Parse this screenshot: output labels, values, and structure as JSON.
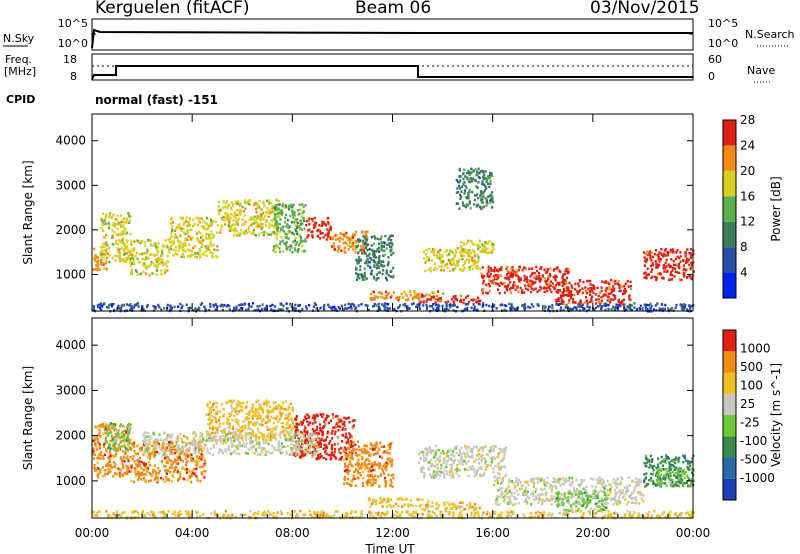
{
  "header": {
    "station": "Kerguelen (fitACF)",
    "beam": "Beam 06",
    "date": "03/Nov/2015"
  },
  "strip": {
    "nsky_label": "N.Sky",
    "nsky_ticks": [
      "10^5",
      "10^0"
    ],
    "nsearch_label": "N.Search",
    "nsearch_ticks": [
      "10^5",
      "10^0"
    ],
    "freq_label": "Freq.",
    "freq_unit": "[MHz]",
    "freq_ticks": [
      "18",
      "8"
    ],
    "nave_label": "Nave",
    "nave_ticks": [
      "60",
      "0"
    ],
    "cpid_label": "CPID",
    "cpid_text": "normal (fast) -151"
  },
  "chart_data": [
    {
      "type": "heatmap",
      "name": "power",
      "ylabel": "Slant Range [km]",
      "xlabel": "",
      "x_ticks": [
        "00:00",
        "04:00",
        "08:00",
        "12:00",
        "16:00",
        "20:00",
        "00:00"
      ],
      "y_ticks": [
        1000,
        2000,
        3000,
        4000
      ],
      "ylim": [
        180,
        4600
      ],
      "xlim_hours": [
        0,
        24
      ],
      "colorbar": {
        "label": "Power [dB]",
        "ticks": [
          "4",
          "8",
          "12",
          "16",
          "20",
          "24",
          "28"
        ],
        "colors": [
          "#0022ee",
          "#2a4fa8",
          "#3a7f5a",
          "#5ab04a",
          "#d8d020",
          "#f08a14",
          "#e02012"
        ]
      },
      "regions": [
        {
          "t0": 0.0,
          "t1": 0.6,
          "r0": 1100,
          "r1": 1600,
          "level": 5
        },
        {
          "t0": 0.3,
          "t1": 1.5,
          "r0": 1300,
          "r1": 2400,
          "level": 4
        },
        {
          "t0": 1.5,
          "t1": 3.0,
          "r0": 1000,
          "r1": 1800,
          "level": 4
        },
        {
          "t0": 3.0,
          "t1": 5.0,
          "r0": 1400,
          "r1": 2300,
          "level": 4
        },
        {
          "t0": 5.0,
          "t1": 7.5,
          "r0": 1900,
          "r1": 2700,
          "level": 4
        },
        {
          "t0": 7.2,
          "t1": 8.5,
          "r0": 1500,
          "r1": 2600,
          "level": 3
        },
        {
          "t0": 8.5,
          "t1": 9.5,
          "r0": 1800,
          "r1": 2300,
          "level": 6
        },
        {
          "t0": 9.5,
          "t1": 11.0,
          "r0": 1500,
          "r1": 2000,
          "level": 5
        },
        {
          "t0": 10.5,
          "t1": 12.0,
          "r0": 900,
          "r1": 1900,
          "level": 2
        },
        {
          "t0": 11.0,
          "t1": 14.0,
          "r0": 450,
          "r1": 650,
          "level": 5
        },
        {
          "t0": 13.0,
          "t1": 15.5,
          "r0": 380,
          "r1": 550,
          "level": 6
        },
        {
          "t0": 13.2,
          "t1": 15.5,
          "r0": 1100,
          "r1": 1600,
          "level": 4
        },
        {
          "t0": 14.5,
          "t1": 16.0,
          "r0": 1500,
          "r1": 1800,
          "level": 4
        },
        {
          "t0": 14.5,
          "t1": 16.0,
          "r0": 2500,
          "r1": 3400,
          "level": 2
        },
        {
          "t0": 15.5,
          "t1": 19.0,
          "r0": 600,
          "r1": 1200,
          "level": 6
        },
        {
          "t0": 18.5,
          "t1": 21.5,
          "r0": 350,
          "r1": 900,
          "level": 6
        },
        {
          "t0": 22.0,
          "t1": 24.0,
          "r0": 900,
          "r1": 1600,
          "level": 6
        },
        {
          "t0": 0.0,
          "t1": 24.0,
          "r0": 200,
          "r1": 380,
          "level": 1
        }
      ]
    },
    {
      "type": "heatmap",
      "name": "velocity",
      "ylabel": "Slant Range [km]",
      "xlabel": "Time UT",
      "x_ticks": [
        "00:00",
        "04:00",
        "08:00",
        "12:00",
        "16:00",
        "20:00",
        "00:00"
      ],
      "y_ticks": [
        1000,
        2000,
        3000,
        4000
      ],
      "ylim": [
        180,
        4600
      ],
      "xlim_hours": [
        0,
        24
      ],
      "colorbar": {
        "label": "Velocity [m s^-1]",
        "ticks": [
          "1000",
          "500",
          "100",
          "25",
          "-25",
          "-100",
          "-500",
          "-1000"
        ],
        "colors": [
          "#1a3fb8",
          "#2a6aa8",
          "#3a8a4a",
          "#6ac83a",
          "#c8c8c0",
          "#f0c020",
          "#f08a14",
          "#e02012"
        ]
      },
      "regions": [
        {
          "t0": 0.0,
          "t1": 1.5,
          "r0": 1100,
          "r1": 2300,
          "level": 6
        },
        {
          "t0": 0.5,
          "t1": 1.5,
          "r0": 1700,
          "r1": 2300,
          "level": 3
        },
        {
          "t0": 1.5,
          "t1": 4.5,
          "r0": 1000,
          "r1": 1900,
          "level": 6
        },
        {
          "t0": 4.5,
          "t1": 8.0,
          "r0": 1900,
          "r1": 2800,
          "level": 5
        },
        {
          "t0": 8.0,
          "t1": 10.5,
          "r0": 1500,
          "r1": 2500,
          "level": 7
        },
        {
          "t0": 10.0,
          "t1": 12.0,
          "r0": 900,
          "r1": 1900,
          "level": 6
        },
        {
          "t0": 11.0,
          "t1": 13.5,
          "r0": 450,
          "r1": 650,
          "level": 5
        },
        {
          "t0": 13.0,
          "t1": 15.5,
          "r0": 380,
          "r1": 550,
          "level": 5
        },
        {
          "t0": 2.0,
          "t1": 9.0,
          "r0": 1600,
          "r1": 2100,
          "level": 4
        },
        {
          "t0": 13.0,
          "t1": 16.5,
          "r0": 1100,
          "r1": 1800,
          "level": 4
        },
        {
          "t0": 16.0,
          "t1": 22.0,
          "r0": 500,
          "r1": 1100,
          "level": 4
        },
        {
          "t0": 18.5,
          "t1": 20.5,
          "r0": 350,
          "r1": 800,
          "level": 3
        },
        {
          "t0": 22.0,
          "t1": 24.0,
          "r0": 900,
          "r1": 1600,
          "level": 2
        },
        {
          "t0": 22.5,
          "t1": 24.0,
          "r0": 900,
          "r1": 1300,
          "level": 3
        },
        {
          "t0": 0.0,
          "t1": 24.0,
          "r0": 200,
          "r1": 360,
          "level": 5
        }
      ]
    }
  ]
}
